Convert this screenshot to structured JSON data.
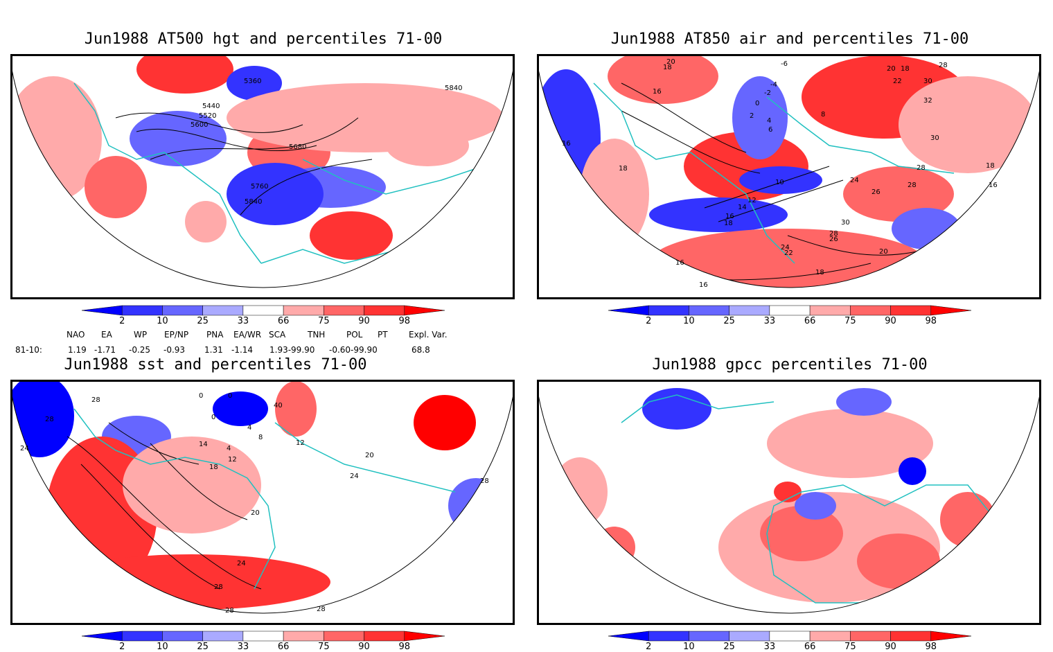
{
  "panels": [
    {
      "title": "Jun1988 AT500 hgt and percentiles 71-00",
      "contour_labels": [
        "5360",
        "5440",
        "5520",
        "5600",
        "5680",
        "5760",
        "5840",
        "5840"
      ]
    },
    {
      "title": "Jun1988 AT850 air and percentiles 71-00",
      "contour_labels": [
        "20",
        "18",
        "16",
        "16",
        "18",
        "-6",
        "-4",
        "-2",
        "0",
        "2",
        "4",
        "6",
        "8",
        "10",
        "12",
        "14",
        "16",
        "18",
        "20",
        "18",
        "28",
        "22",
        "30",
        "32",
        "30",
        "28",
        "26",
        "24",
        "28",
        "30",
        "26",
        "24",
        "22",
        "28",
        "20",
        "16",
        "16",
        "18",
        "18",
        "16"
      ]
    },
    {
      "title": "Jun1988 sst and percentiles 71-00",
      "contour_labels": [
        "28",
        "28",
        "24",
        "0",
        "0",
        "0",
        "4",
        "4",
        "8",
        "12",
        "12",
        "14",
        "18",
        "20",
        "20",
        "24",
        "24",
        "28",
        "28",
        "28",
        "28",
        "40"
      ]
    },
    {
      "title": "Jun1988 gpcc percentiles 71-00",
      "contour_labels": []
    }
  ],
  "colorbar": {
    "ticks": [
      "2",
      "10",
      "25",
      "33",
      "66",
      "75",
      "90",
      "98"
    ],
    "colors": [
      "#0000ff",
      "#3333ff",
      "#6666ff",
      "#aaaaff",
      "#ffffff",
      "#ffaaaa",
      "#ff6666",
      "#ff3333",
      "#ff0000"
    ]
  },
  "indices": {
    "headers": [
      "NAO",
      "EA",
      "WP",
      "EP/NP",
      "PNA",
      "EA/WR",
      "SCA",
      "TNH",
      "POL",
      "PT",
      "Expl. Var."
    ],
    "row_label": "81-10:",
    "values": [
      "1.19",
      "-1.71",
      "-0.25",
      "-0.93",
      "1.31",
      "-1.14",
      "1.93-99.90",
      "-0.60-99.90",
      "68.8"
    ]
  },
  "colors": {
    "coastline": "#20c0c0",
    "contour": "#000000",
    "red": "#ff0000",
    "blue": "#0000ff"
  }
}
